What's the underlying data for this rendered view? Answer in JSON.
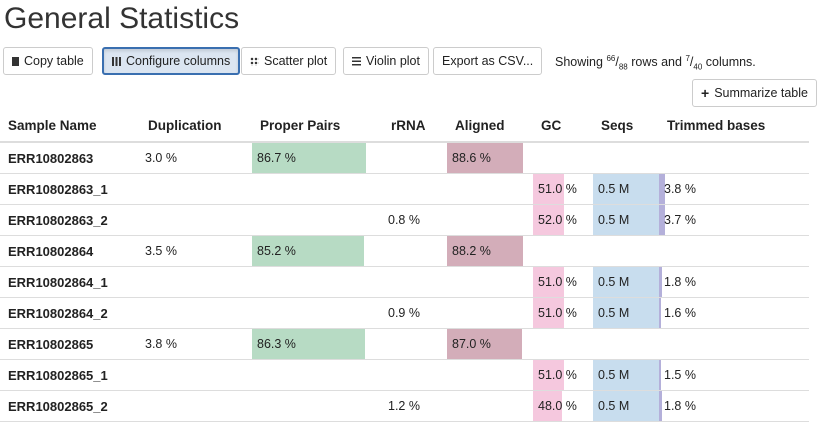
{
  "header": {
    "title": "General Statistics"
  },
  "toolbar": {
    "buttons": [
      "Copy table",
      "Configure columns",
      "Scatter plot",
      "Violin plot",
      "Export as CSV..."
    ],
    "status": {
      "prefix": "Showing",
      "rows_shown": "66",
      "separator": "/",
      "rows_total": "88",
      "middle": "rows and",
      "cols_shown": "7",
      "cols_total": "40",
      "suffix": "columns."
    },
    "summarize": "Summarize table"
  },
  "table": {
    "columns": [
      "Sample Name",
      "Duplication",
      "Proper Pairs",
      "rRNA",
      "Aligned",
      "GC",
      "Seqs",
      "Trimmed bases"
    ],
    "rows": [
      [
        "ERR10802863",
        "3.0 %",
        "86.7 %",
        null,
        "88.6 %",
        null,
        null,
        null
      ],
      [
        "ERR10802863_1",
        null,
        null,
        null,
        null,
        "51.0 %",
        "0.5 M",
        "3.8 %"
      ],
      [
        "ERR10802863_2",
        null,
        null,
        "0.8 %",
        null,
        "52.0 %",
        "0.5 M",
        "3.7 %"
      ],
      [
        "ERR10802864",
        "3.5 %",
        "85.2 %",
        null,
        "88.2 %",
        null,
        null,
        null
      ],
      [
        "ERR10802864_1",
        null,
        null,
        null,
        null,
        "51.0 %",
        "0.5 M",
        "1.8 %"
      ],
      [
        "ERR10802864_2",
        null,
        null,
        "0.9 %",
        null,
        "51.0 %",
        "0.5 M",
        "1.6 %"
      ],
      [
        "ERR10802865",
        "3.8 %",
        "86.3 %",
        null,
        "87.0 %",
        null,
        null,
        null
      ],
      [
        "ERR10802865_1",
        null,
        null,
        null,
        null,
        "51.0 %",
        "0.5 M",
        "1.5 %"
      ],
      [
        "ERR10802865_2",
        null,
        null,
        "1.2 %",
        null,
        "48.0 %",
        "0.5 M",
        "1.8 %"
      ]
    ]
  }
}
